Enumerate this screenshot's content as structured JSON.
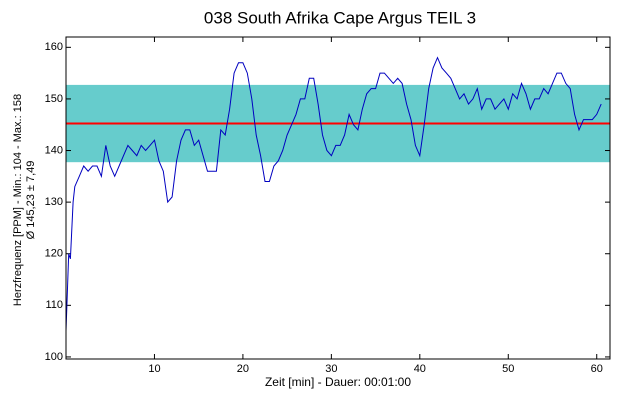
{
  "chart_data": {
    "type": "line",
    "title": "038 South Afrika Cape Argus TEIL 3",
    "x_label": "Zeit [min] - Dauer: 00:01:00",
    "y_label": [
      "Herzfrequenz [PPM] - Min.: 104 - Max.: 158",
      "Ø 145,23 ± 7,49"
    ],
    "x": [
      0,
      0.3,
      0.5,
      0.8,
      1,
      1.5,
      2,
      2.5,
      3,
      3.5,
      4,
      4.5,
      5,
      5.5,
      6,
      6.5,
      7,
      7.5,
      8,
      8.5,
      9,
      9.5,
      10,
      10.5,
      11,
      11.5,
      12,
      12.5,
      13,
      13.5,
      14,
      14.5,
      15,
      15.5,
      16,
      16.5,
      17,
      17.5,
      18,
      18.5,
      19,
      19.5,
      20,
      20.5,
      21,
      21.5,
      22,
      22.5,
      23,
      23.5,
      24,
      24.5,
      25,
      25.5,
      26,
      26.5,
      27,
      27.5,
      28,
      28.5,
      29,
      29.5,
      30,
      30.5,
      31,
      31.5,
      32,
      32.5,
      33,
      33.5,
      34,
      34.5,
      35,
      35.5,
      36,
      36.5,
      37,
      37.5,
      38,
      38.5,
      39,
      39.5,
      40,
      40.5,
      41,
      41.5,
      42,
      42.5,
      43,
      43.5,
      44,
      44.5,
      45,
      45.5,
      46,
      46.5,
      47,
      47.5,
      48,
      48.5,
      49,
      49.5,
      50,
      50.5,
      51,
      51.5,
      52,
      52.5,
      53,
      53.5,
      54,
      54.5,
      55,
      55.5,
      56,
      56.5,
      57,
      57.5,
      58,
      58.5,
      59,
      59.5,
      60,
      60.5
    ],
    "values": [
      105,
      120,
      119,
      130,
      133,
      135,
      137,
      136,
      137,
      137,
      135,
      141,
      137,
      135,
      137,
      139,
      141,
      140,
      139,
      141,
      140,
      141,
      142,
      138,
      136,
      130,
      131,
      138,
      142,
      144,
      144,
      141,
      142,
      139,
      136,
      136,
      136,
      144,
      143,
      148,
      155,
      157,
      157,
      155,
      150,
      143,
      139,
      134,
      134,
      137,
      138,
      140,
      143,
      145,
      147,
      150,
      150,
      154,
      154,
      149,
      143,
      140,
      139,
      141,
      141,
      143,
      147,
      145,
      144,
      148,
      151,
      152,
      152,
      155,
      155,
      154,
      153,
      154,
      153,
      149,
      146,
      141,
      139,
      145,
      152,
      156,
      158,
      156,
      155,
      154,
      152,
      150,
      151,
      149,
      150,
      152,
      148,
      150,
      150,
      148,
      149,
      150,
      148,
      151,
      150,
      153,
      151,
      148,
      150,
      150,
      152,
      151,
      153,
      155,
      155,
      153,
      152,
      147,
      144,
      146,
      146,
      146,
      147,
      149
    ],
    "color": "#0000c0",
    "mean_line": 145.23,
    "mean_color": "#ff0000",
    "band": [
      137.74,
      152.72
    ],
    "band_color": "#66cccc",
    "xlim": [
      0,
      61.5
    ],
    "ylim": [
      99.6,
      162
    ],
    "xticks": [
      10,
      20,
      30,
      40,
      50,
      60
    ],
    "yticks": [
      100,
      110,
      120,
      130,
      140,
      150,
      160
    ]
  }
}
